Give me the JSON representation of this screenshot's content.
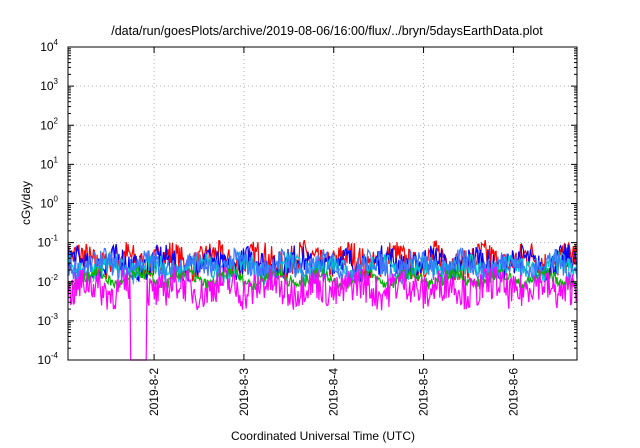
{
  "chart_data": {
    "type": "line",
    "title": "/data/run/goesPlots/archive/2019-08-06/16:00/flux/../bryn/5daysEarthData.plot",
    "xlabel": "Coordinated Universal Time (UTC)",
    "ylabel": "cGy/day",
    "yscale": "log",
    "ylim": [
      0.0001,
      10000
    ],
    "xlim": [
      "2019-08-01T01:00",
      "2019-08-06T17:00"
    ],
    "x_ticks": [
      "2019-8-2",
      "2019-8-3",
      "2019-8-4",
      "2019-8-5",
      "2019-8-6"
    ],
    "y_ticks": [
      {
        "base": "10",
        "exp": "-4"
      },
      {
        "base": "10",
        "exp": "-3"
      },
      {
        "base": "10",
        "exp": "-2"
      },
      {
        "base": "10",
        "exp": "-1"
      },
      {
        "base": "10",
        "exp": "0"
      },
      {
        "base": "10",
        "exp": "1"
      },
      {
        "base": "10",
        "exp": "2"
      },
      {
        "base": "10",
        "exp": "3"
      },
      {
        "base": "10",
        "exp": "4"
      }
    ],
    "grid": true,
    "legend": "none",
    "series": [
      {
        "color": "#ff0000",
        "level": 0.035,
        "spread": 0.4,
        "dropout": false
      },
      {
        "color": "#0000ff",
        "level": 0.03,
        "spread": 0.35,
        "dropout": false
      },
      {
        "color": "#00c8c8",
        "level": 0.022,
        "spread": 0.3,
        "dropout": false
      },
      {
        "color": "#3c78ff",
        "level": 0.026,
        "spread": 0.3,
        "dropout": false
      },
      {
        "color": "#00b400",
        "level": 0.012,
        "spread": 0.15,
        "dropout": false
      },
      {
        "color": "#ff00ff",
        "level": 0.007,
        "spread": 0.45,
        "dropout": true,
        "dropout_at": "2019-08-01T19:45",
        "dropout_to": 0.0001
      }
    ]
  }
}
